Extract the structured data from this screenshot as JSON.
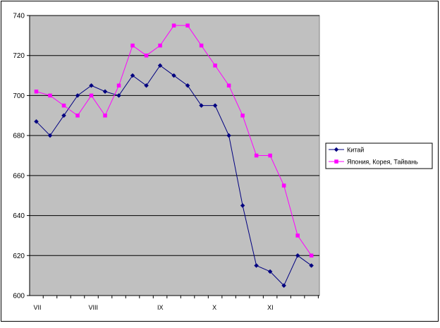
{
  "chart_data": {
    "type": "line",
    "title": "",
    "xlabel": "",
    "ylabel": "",
    "ylim": [
      600,
      740
    ],
    "y_ticks": [
      600,
      620,
      640,
      660,
      680,
      700,
      720,
      740
    ],
    "grid": "horizontal",
    "plot_background": "#c0c0c0",
    "legend_position": "right",
    "x_index": [
      1,
      2,
      3,
      4,
      5,
      6,
      7,
      8,
      9,
      10,
      11,
      12,
      13,
      14,
      15,
      16,
      17,
      18,
      19,
      20,
      21
    ],
    "x_tick_labels": [
      {
        "label": "VII",
        "at": 1
      },
      {
        "label": "VIII",
        "at": 5
      },
      {
        "label": "IX",
        "at": 10
      },
      {
        "label": "X",
        "at": 14
      },
      {
        "label": "XI",
        "at": 18
      }
    ],
    "series": [
      {
        "name": "Китай",
        "color": "#000080",
        "marker": "diamond",
        "values": [
          687,
          680,
          690,
          700,
          705,
          702,
          700,
          710,
          705,
          715,
          710,
          705,
          695,
          695,
          680,
          645,
          615,
          612,
          605,
          620,
          615
        ]
      },
      {
        "name": "Япония, Корея, Тайвань",
        "color": "#ff00ff",
        "marker": "square",
        "values": [
          702,
          700,
          695,
          690,
          700,
          690,
          705,
          725,
          720,
          725,
          735,
          735,
          725,
          715,
          705,
          690,
          670,
          670,
          655,
          630,
          620
        ]
      }
    ]
  }
}
